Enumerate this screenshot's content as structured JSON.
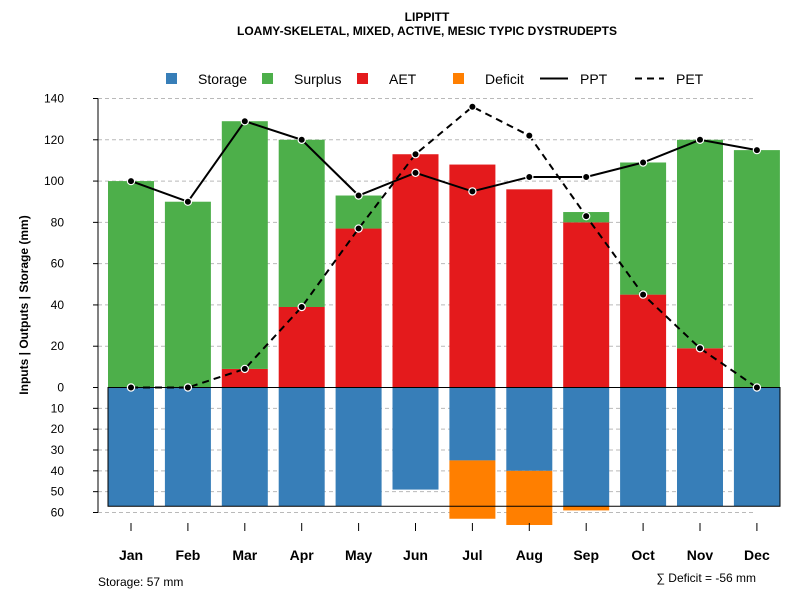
{
  "chart_data": {
    "type": "bar",
    "title": "LIPPITT",
    "subtitle": "LOAMY-SKELETAL, MIXED, ACTIVE, MESIC TYPIC DYSTRUDEPTS",
    "ylabel": "Inputs | Outputs | Storage    (mm)",
    "ylim_top": [
      0,
      140
    ],
    "ylim_bottom": [
      0,
      60
    ],
    "top_ticks": [
      "0",
      "20",
      "40",
      "60",
      "80",
      "100",
      "120",
      "140"
    ],
    "bottom_ticks": [
      "0",
      "10",
      "20",
      "30",
      "40",
      "50",
      "60"
    ],
    "categories": [
      "Jan",
      "Feb",
      "Mar",
      "Apr",
      "May",
      "Jun",
      "Jul",
      "Aug",
      "Sep",
      "Oct",
      "Nov",
      "Dec"
    ],
    "series": [
      {
        "name": "AET",
        "color": "#e41a1c",
        "values": [
          0,
          0,
          9,
          39,
          77,
          113,
          108,
          96,
          80,
          45,
          19,
          0
        ]
      },
      {
        "name": "Surplus",
        "color": "#4daf4a",
        "values": [
          100,
          90,
          120,
          81,
          16,
          0,
          0,
          0,
          5,
          64,
          101,
          115
        ]
      },
      {
        "name": "Storage",
        "color": "#377eb8",
        "values": [
          57,
          57,
          57,
          57,
          57,
          49,
          35,
          40,
          57,
          57,
          57,
          57
        ]
      },
      {
        "name": "Deficit",
        "color": "#ff7f00",
        "values": [
          0,
          0,
          0,
          0,
          0,
          0,
          28,
          26,
          2,
          0,
          0,
          0
        ]
      },
      {
        "name": "PPT",
        "color": "#000000",
        "values": [
          100,
          90,
          129,
          120,
          93,
          104,
          95,
          102,
          102,
          109,
          120,
          115
        ]
      },
      {
        "name": "PET",
        "color": "#000000",
        "values": [
          0,
          0,
          9,
          39,
          77,
          113,
          136,
          122,
          83,
          45,
          19,
          0
        ]
      }
    ],
    "legend": [
      "Storage",
      "Surplus",
      "AET",
      "Deficit",
      "PPT",
      "PET"
    ],
    "legend_position": "top",
    "storage_capacity": 57,
    "footer_left": "Storage: 57 mm",
    "footer_right": "∑ Deficit = -56 mm"
  },
  "colors": {
    "storage": "#377eb8",
    "surplus": "#4daf4a",
    "aet": "#e41a1c",
    "deficit": "#ff7f00",
    "line": "#000000",
    "grid": "#b9b9b9"
  }
}
